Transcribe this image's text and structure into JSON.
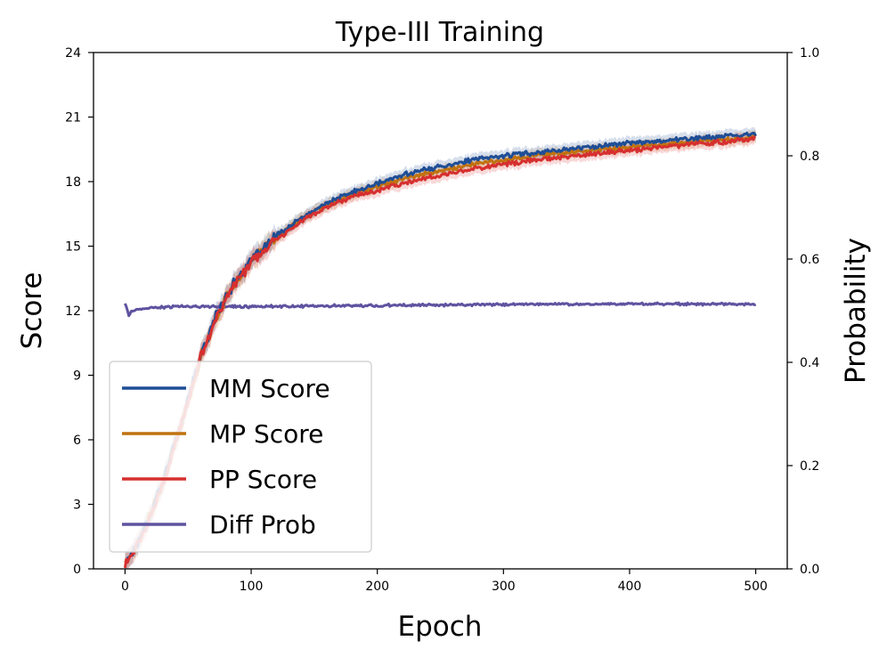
{
  "chart_data": {
    "type": "line",
    "title": "Type-III Training",
    "xlabel": "Epoch",
    "ylabel": "Score",
    "y2label": "Probability",
    "xlim": [
      -25,
      525
    ],
    "ylim": [
      0,
      24
    ],
    "y2lim": [
      0.0,
      1.0
    ],
    "xticks": [
      0,
      100,
      200,
      300,
      400,
      500
    ],
    "yticks": [
      0,
      3,
      6,
      9,
      12,
      15,
      18,
      21,
      24
    ],
    "y2ticks": [
      "0.0",
      "0.2",
      "0.4",
      "0.6",
      "0.8",
      "1.0"
    ],
    "legend_position": "lower-left",
    "series": [
      {
        "name": "MM Score",
        "axis": "left",
        "color": "#1f4e96",
        "x": [
          0,
          10,
          20,
          30,
          40,
          50,
          60,
          70,
          80,
          90,
          100,
          120,
          140,
          160,
          180,
          200,
          225,
          250,
          275,
          300,
          325,
          350,
          375,
          400,
          425,
          450,
          475,
          500
        ],
        "values": [
          0.3,
          1.2,
          2.6,
          4.1,
          5.9,
          7.9,
          9.9,
          11.5,
          12.7,
          13.6,
          14.3,
          15.5,
          16.3,
          17.0,
          17.5,
          17.9,
          18.4,
          18.7,
          19.0,
          19.2,
          19.35,
          19.5,
          19.65,
          19.8,
          19.9,
          20.0,
          20.1,
          20.2
        ]
      },
      {
        "name": "MP Score",
        "axis": "left",
        "color": "#c0720f",
        "x": [
          0,
          10,
          20,
          30,
          40,
          50,
          60,
          70,
          80,
          90,
          100,
          120,
          140,
          160,
          180,
          200,
          225,
          250,
          275,
          300,
          325,
          350,
          375,
          400,
          425,
          450,
          475,
          500
        ],
        "values": [
          0.3,
          1.1,
          2.5,
          4.0,
          5.8,
          7.8,
          9.8,
          11.4,
          12.6,
          13.5,
          14.3,
          15.4,
          16.3,
          16.9,
          17.4,
          17.8,
          18.2,
          18.5,
          18.8,
          19.0,
          19.2,
          19.35,
          19.5,
          19.6,
          19.75,
          19.85,
          19.95,
          20.1
        ]
      },
      {
        "name": "PP Score",
        "axis": "left",
        "color": "#d62f2f",
        "x": [
          0,
          10,
          20,
          30,
          40,
          50,
          60,
          70,
          80,
          90,
          100,
          120,
          140,
          160,
          180,
          200,
          225,
          250,
          275,
          300,
          325,
          350,
          375,
          400,
          425,
          450,
          475,
          500
        ],
        "values": [
          0.2,
          1.1,
          2.4,
          3.9,
          5.8,
          7.8,
          9.8,
          11.4,
          12.6,
          13.5,
          14.2,
          15.3,
          16.2,
          16.8,
          17.3,
          17.6,
          18.0,
          18.3,
          18.6,
          18.8,
          19.0,
          19.15,
          19.3,
          19.45,
          19.6,
          19.75,
          19.85,
          20.0
        ]
      },
      {
        "name": "Diff Prob",
        "axis": "right",
        "color": "#5e53a0",
        "x": [
          0,
          3,
          6,
          10,
          20,
          30,
          50,
          100,
          150,
          200,
          250,
          300,
          350,
          400,
          450,
          500
        ],
        "values": [
          0.515,
          0.49,
          0.5,
          0.502,
          0.505,
          0.507,
          0.508,
          0.508,
          0.509,
          0.51,
          0.511,
          0.512,
          0.513,
          0.513,
          0.513,
          0.512
        ]
      }
    ]
  }
}
